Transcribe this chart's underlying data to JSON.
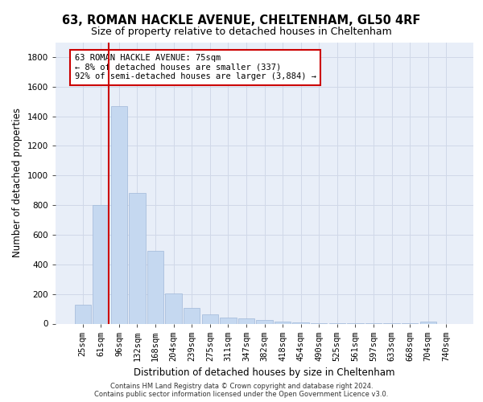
{
  "title1": "63, ROMAN HACKLE AVENUE, CHELTENHAM, GL50 4RF",
  "title2": "Size of property relative to detached houses in Cheltenham",
  "xlabel": "Distribution of detached houses by size in Cheltenham",
  "ylabel": "Number of detached properties",
  "footer1": "Contains HM Land Registry data © Crown copyright and database right 2024.",
  "footer2": "Contains public sector information licensed under the Open Government Licence v3.0.",
  "annotation_line1": "63 ROMAN HACKLE AVENUE: 75sqm",
  "annotation_line2": "← 8% of detached houses are smaller (337)",
  "annotation_line3": "92% of semi-detached houses are larger (3,884) →",
  "bar_labels": [
    "25sqm",
    "61sqm",
    "96sqm",
    "132sqm",
    "168sqm",
    "204sqm",
    "239sqm",
    "275sqm",
    "311sqm",
    "347sqm",
    "382sqm",
    "418sqm",
    "454sqm",
    "490sqm",
    "525sqm",
    "561sqm",
    "597sqm",
    "633sqm",
    "668sqm",
    "704sqm",
    "740sqm"
  ],
  "bar_values": [
    125,
    800,
    1470,
    880,
    490,
    205,
    105,
    65,
    42,
    35,
    22,
    15,
    8,
    5,
    3,
    2,
    2,
    1,
    1,
    15,
    0
  ],
  "bar_color": "#c5d8f0",
  "bar_edge_color": "#a0b8d8",
  "grid_color": "#d0d8e8",
  "ylim": [
    0,
    1900
  ],
  "yticks": [
    0,
    200,
    400,
    600,
    800,
    1000,
    1200,
    1400,
    1600,
    1800
  ],
  "bg_color": "#e8eef8",
  "annotation_box_color": "#ffffff",
  "annotation_box_edge": "#cc0000",
  "red_line_color": "#cc0000",
  "red_line_x": 1.43,
  "title1_fontsize": 10.5,
  "title2_fontsize": 9,
  "xlabel_fontsize": 8.5,
  "ylabel_fontsize": 8.5,
  "tick_fontsize": 7.5,
  "annotation_fontsize": 7.5,
  "footer_fontsize": 6.0
}
